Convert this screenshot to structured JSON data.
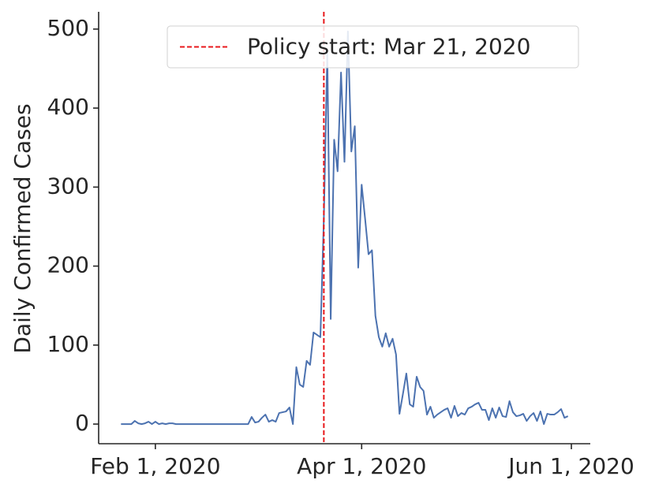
{
  "chart_data": {
    "type": "line",
    "ylabel": "Daily Confirmed Cases",
    "color": "#4c72b0",
    "x": [
      "2020-01-22",
      "2020-01-23",
      "2020-01-24",
      "2020-01-25",
      "2020-01-26",
      "2020-01-27",
      "2020-01-28",
      "2020-01-29",
      "2020-01-30",
      "2020-01-31",
      "2020-02-01",
      "2020-02-02",
      "2020-02-03",
      "2020-02-04",
      "2020-02-05",
      "2020-02-06",
      "2020-02-07",
      "2020-02-08",
      "2020-02-09",
      "2020-02-10",
      "2020-02-11",
      "2020-02-12",
      "2020-02-13",
      "2020-02-14",
      "2020-02-15",
      "2020-02-16",
      "2020-02-17",
      "2020-02-18",
      "2020-02-19",
      "2020-02-20",
      "2020-02-21",
      "2020-02-22",
      "2020-02-23",
      "2020-02-24",
      "2020-02-25",
      "2020-02-26",
      "2020-02-27",
      "2020-02-28",
      "2020-02-29",
      "2020-03-01",
      "2020-03-02",
      "2020-03-03",
      "2020-03-04",
      "2020-03-05",
      "2020-03-06",
      "2020-03-07",
      "2020-03-08",
      "2020-03-09",
      "2020-03-10",
      "2020-03-11",
      "2020-03-12",
      "2020-03-13",
      "2020-03-14",
      "2020-03-15",
      "2020-03-16",
      "2020-03-17",
      "2020-03-18",
      "2020-03-19",
      "2020-03-20",
      "2020-03-21",
      "2020-03-22",
      "2020-03-23",
      "2020-03-24",
      "2020-03-25",
      "2020-03-26",
      "2020-03-27",
      "2020-03-28",
      "2020-03-29",
      "2020-03-30",
      "2020-03-31",
      "2020-04-01",
      "2020-04-02",
      "2020-04-03",
      "2020-04-04",
      "2020-04-05",
      "2020-04-06",
      "2020-04-07",
      "2020-04-08",
      "2020-04-09",
      "2020-04-10",
      "2020-04-11",
      "2020-04-12",
      "2020-04-13",
      "2020-04-14",
      "2020-04-15",
      "2020-04-16",
      "2020-04-17",
      "2020-04-18",
      "2020-04-19",
      "2020-04-20",
      "2020-04-21",
      "2020-04-22",
      "2020-04-23",
      "2020-04-24",
      "2020-04-25",
      "2020-04-26",
      "2020-04-27",
      "2020-04-28",
      "2020-04-29",
      "2020-04-30",
      "2020-05-01",
      "2020-05-02",
      "2020-05-03",
      "2020-05-04",
      "2020-05-05",
      "2020-05-06",
      "2020-05-07",
      "2020-05-08",
      "2020-05-09",
      "2020-05-10",
      "2020-05-11",
      "2020-05-12",
      "2020-05-13",
      "2020-05-14",
      "2020-05-15",
      "2020-05-16",
      "2020-05-17",
      "2020-05-18",
      "2020-05-19",
      "2020-05-20",
      "2020-05-21",
      "2020-05-22",
      "2020-05-23",
      "2020-05-24",
      "2020-05-25",
      "2020-05-26",
      "2020-05-27",
      "2020-05-28",
      "2020-05-29",
      "2020-05-30",
      "2020-05-31"
    ],
    "values": [
      0,
      0,
      0,
      0,
      4,
      1,
      0,
      1,
      3,
      0,
      3,
      0,
      1,
      0,
      1,
      1,
      0,
      0,
      0,
      0,
      0,
      0,
      0,
      0,
      0,
      0,
      0,
      0,
      0,
      0,
      0,
      0,
      0,
      0,
      0,
      0,
      0,
      0,
      9,
      2,
      3,
      8,
      12,
      3,
      5,
      3,
      14,
      15,
      16,
      21,
      0,
      72,
      50,
      47,
      80,
      75,
      116,
      113,
      110,
      260,
      470,
      133,
      360,
      320,
      445,
      332,
      497,
      345,
      377,
      198,
      303,
      260,
      215,
      220,
      137,
      110,
      98,
      115,
      98,
      108,
      88,
      13,
      38,
      64,
      25,
      22,
      60,
      47,
      42,
      12,
      22,
      8,
      12,
      15,
      18,
      20,
      8,
      23,
      10,
      14,
      12,
      20,
      22,
      25,
      27,
      18,
      18,
      5,
      20,
      8,
      21,
      10,
      9,
      29,
      15,
      10,
      11,
      13,
      4,
      10,
      14,
      4,
      16,
      0,
      13,
      12,
      12,
      15,
      19,
      8,
      10
    ],
    "xlim": [
      "2020-01-15T12:00:00Z",
      "2020-06-06T12:00:00Z"
    ],
    "xticks": [
      {
        "value": "2020-02-01",
        "label": "Feb 1, 2020"
      },
      {
        "value": "2020-04-01",
        "label": "Apr 1, 2020"
      },
      {
        "value": "2020-06-01",
        "label": "Jun 1, 2020"
      }
    ],
    "ylim": [
      -24.85,
      521.85
    ],
    "yticks": [
      0,
      100,
      200,
      300,
      400,
      500
    ],
    "vline": {
      "x": "2020-03-21",
      "label": "Policy start: Mar 21, 2020",
      "color": "#e8191c"
    },
    "legend": "upper right"
  }
}
